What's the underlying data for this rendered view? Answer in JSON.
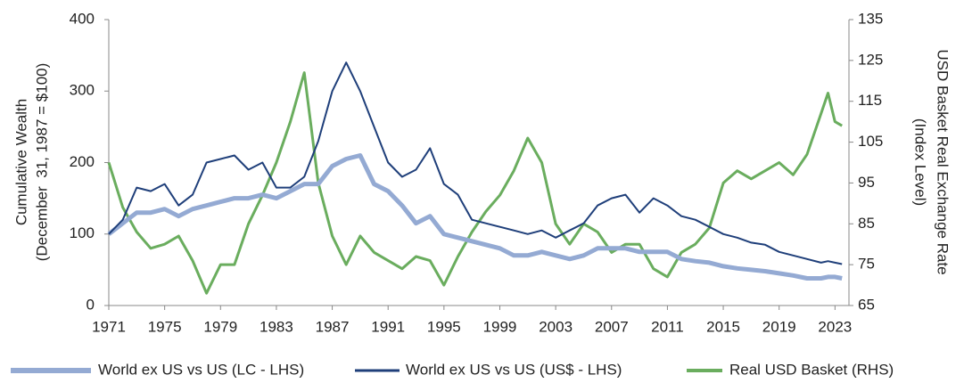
{
  "chart_data": {
    "type": "line",
    "ylabel": [
      "Cumulative Wealth",
      "(December  31, 1987 = $100)"
    ],
    "y2label": [
      "USD Basket Real Exchange Rate",
      "(Index Level)"
    ],
    "x": [
      1971,
      1972,
      1973,
      1974,
      1975,
      1976,
      1977,
      1978,
      1979,
      1980,
      1981,
      1982,
      1983,
      1984,
      1985,
      1986,
      1987,
      1988,
      1989,
      1990,
      1991,
      1992,
      1993,
      1994,
      1995,
      1996,
      1997,
      1998,
      1999,
      2000,
      2001,
      2002,
      2003,
      2004,
      2005,
      2006,
      2007,
      2008,
      2009,
      2010,
      2011,
      2012,
      2013,
      2014,
      2015,
      2016,
      2017,
      2018,
      2019,
      2020,
      2021,
      2022,
      2022.5,
      2023,
      2023.5
    ],
    "series": [
      {
        "name": "World ex US vs US (LC - LHS)",
        "color": "#94aad3",
        "width": 5,
        "values": [
          100,
          115,
          130,
          130,
          135,
          125,
          135,
          140,
          145,
          150,
          150,
          155,
          150,
          160,
          170,
          170,
          195,
          205,
          210,
          170,
          160,
          140,
          115,
          125,
          100,
          95,
          90,
          85,
          80,
          70,
          70,
          75,
          70,
          65,
          70,
          80,
          80,
          80,
          75,
          75,
          75,
          65,
          62,
          60,
          55,
          52,
          50,
          48,
          45,
          42,
          38,
          38,
          40,
          40,
          38
        ]
      },
      {
        "name": "World ex US vs US (US$ - LHS)",
        "color": "#1f3f7a",
        "width": 2,
        "values": [
          100,
          120,
          165,
          160,
          170,
          140,
          155,
          200,
          205,
          210,
          190,
          200,
          165,
          165,
          180,
          230,
          300,
          340,
          300,
          250,
          200,
          180,
          190,
          220,
          170,
          155,
          120,
          115,
          110,
          105,
          100,
          105,
          95,
          105,
          115,
          140,
          150,
          155,
          130,
          150,
          140,
          125,
          120,
          110,
          100,
          95,
          88,
          85,
          75,
          70,
          65,
          60,
          62,
          60,
          58
        ]
      },
      {
        "name": "Real USD Basket (RHS)",
        "color": "#6aad5e",
        "width": 3,
        "axis": "y2",
        "values": [
          100,
          89,
          83,
          79,
          80,
          82,
          76,
          68,
          75,
          75,
          85,
          92,
          100,
          110,
          122,
          95,
          82,
          75,
          82,
          78,
          76,
          74,
          77,
          76,
          70,
          77,
          83,
          88,
          92,
          98,
          106,
          100,
          85,
          80,
          85,
          83,
          78,
          80,
          80,
          74,
          72,
          78,
          80,
          84,
          95,
          98,
          96,
          98,
          100,
          97,
          102,
          112,
          117,
          110,
          109
        ]
      }
    ],
    "xlim": [
      1971,
      2024
    ],
    "xticks": [
      1971,
      1975,
      1979,
      1983,
      1987,
      1991,
      1995,
      1999,
      2003,
      2007,
      2011,
      2015,
      2019,
      2023
    ],
    "ylim": [
      0,
      400
    ],
    "yticks": [
      0,
      100,
      200,
      300,
      400
    ],
    "y2lim": [
      65,
      135
    ],
    "y2ticks": [
      65,
      75,
      85,
      95,
      105,
      115,
      125,
      135
    ]
  }
}
